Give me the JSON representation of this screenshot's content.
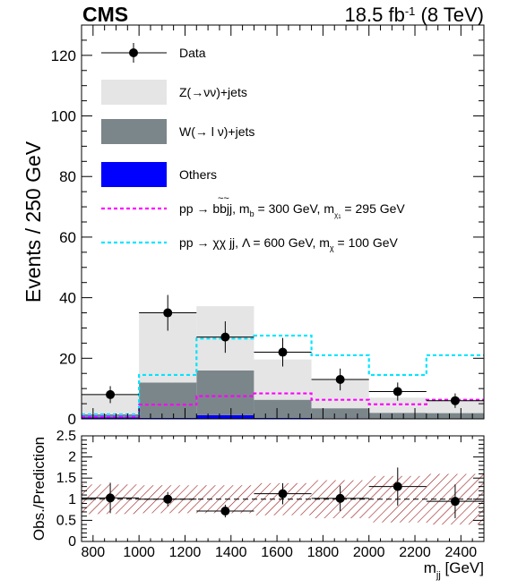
{
  "header": {
    "experiment": "CMS",
    "lumi_prefix": "18.5 fb",
    "lumi_exp": "-1",
    "lumi_suffix": " (8 TeV)"
  },
  "chart_data": [
    {
      "type": "bar",
      "stacked": true,
      "ylabel": "Events / 250 GeV",
      "xlim": [
        750,
        2500
      ],
      "ylim": [
        0,
        130
      ],
      "yticks": [
        0,
        20,
        40,
        60,
        80,
        100,
        120
      ],
      "bin_edges": [
        750,
        1000,
        1250,
        1500,
        1750,
        2000,
        2250,
        2500
      ],
      "colors": {
        "znn": "#e5e5e5",
        "wln": "#7b868a",
        "others": "#0000ff",
        "sbottom": "#ff00ff",
        "dm": "#00e5ff",
        "data": "#000000"
      },
      "stack": [
        {
          "key": "others",
          "values": [
            0.5,
            0.3,
            1.2,
            0.3,
            0.2,
            0.1,
            0.1
          ]
        },
        {
          "key": "wln",
          "values": [
            1.0,
            11.7,
            14.8,
            6.0,
            3.3,
            1.9,
            1.8
          ]
        },
        {
          "key": "znn",
          "values": [
            6.7,
            22.8,
            21.2,
            13.3,
            9.5,
            5.0,
            4.6
          ]
        }
      ],
      "signals": [
        {
          "key": "sbottom",
          "values": [
            0.8,
            4.7,
            7.5,
            8.4,
            6.3,
            4.8,
            6.3
          ]
        },
        {
          "key": "dm",
          "values": [
            1.5,
            14.5,
            26.5,
            27.5,
            21.0,
            14.5,
            21.0
          ]
        }
      ],
      "data": {
        "x": [
          875,
          1125,
          1375,
          1625,
          1875,
          2125,
          2375
        ],
        "y": [
          8,
          35,
          27,
          22,
          13,
          9,
          6
        ],
        "yerr": [
          2.8,
          5.9,
          5.2,
          4.7,
          3.6,
          3.0,
          2.4
        ]
      },
      "legend": {
        "placement": "top-left",
        "entries": [
          {
            "key": "data",
            "label": "Data",
            "style": "marker"
          },
          {
            "key": "znn",
            "label": "Z(→νν)+jets",
            "style": "fill"
          },
          {
            "key": "wln",
            "label": "W(→ l ν)+jets",
            "style": "fill"
          },
          {
            "key": "others",
            "label": "Others",
            "style": "fill"
          },
          {
            "key": "sbottom",
            "label": "pp → b̃b̃jj, m = 300 GeV, m = 295 GeV",
            "style": "line",
            "parts": {
              "main": "pp → ",
              "bb": "bbjj",
              "tilde": "~~",
              "mid": ", m",
              "sub1": "b",
              "sub1_tilde": "~",
              "mid2": " = 300 GeV, m",
              "sub2": "χ",
              "sub2_sup": "0",
              "sub2_sub": "1",
              "end": " = 295 GeV"
            }
          },
          {
            "key": "dm",
            "label": "pp → χχ jj, Λ = 600 GeV, m = 100 GeV",
            "style": "line",
            "parts": {
              "main": "pp → χχ jj, Λ = 600 GeV, m",
              "sub": "χ",
              "end": " = 100 GeV"
            }
          }
        ]
      }
    },
    {
      "type": "scatter",
      "ylabel": "Obs./Prediction",
      "xlabel": "m",
      "xlabel_sub": "jj",
      "xlabel_unit": " [GeV]",
      "xlim": [
        750,
        2500
      ],
      "ylim": [
        0,
        2.5
      ],
      "yticks": [
        "0",
        "0.5",
        "1",
        "1.5",
        "2",
        "2.5"
      ],
      "xticks": [
        800,
        1000,
        1200,
        1400,
        1600,
        1800,
        2000,
        2200,
        2400
      ],
      "reference_line": 1.0,
      "band_halfwidth": [
        0.35,
        0.33,
        0.33,
        0.38,
        0.45,
        0.55,
        0.6
      ],
      "x": [
        875,
        1125,
        1375,
        1625,
        1875,
        2125,
        2375
      ],
      "y": [
        1.03,
        1.0,
        0.72,
        1.13,
        1.02,
        1.3,
        0.95
      ],
      "yerr": [
        0.36,
        0.17,
        0.15,
        0.25,
        0.3,
        0.45,
        0.4
      ]
    }
  ]
}
